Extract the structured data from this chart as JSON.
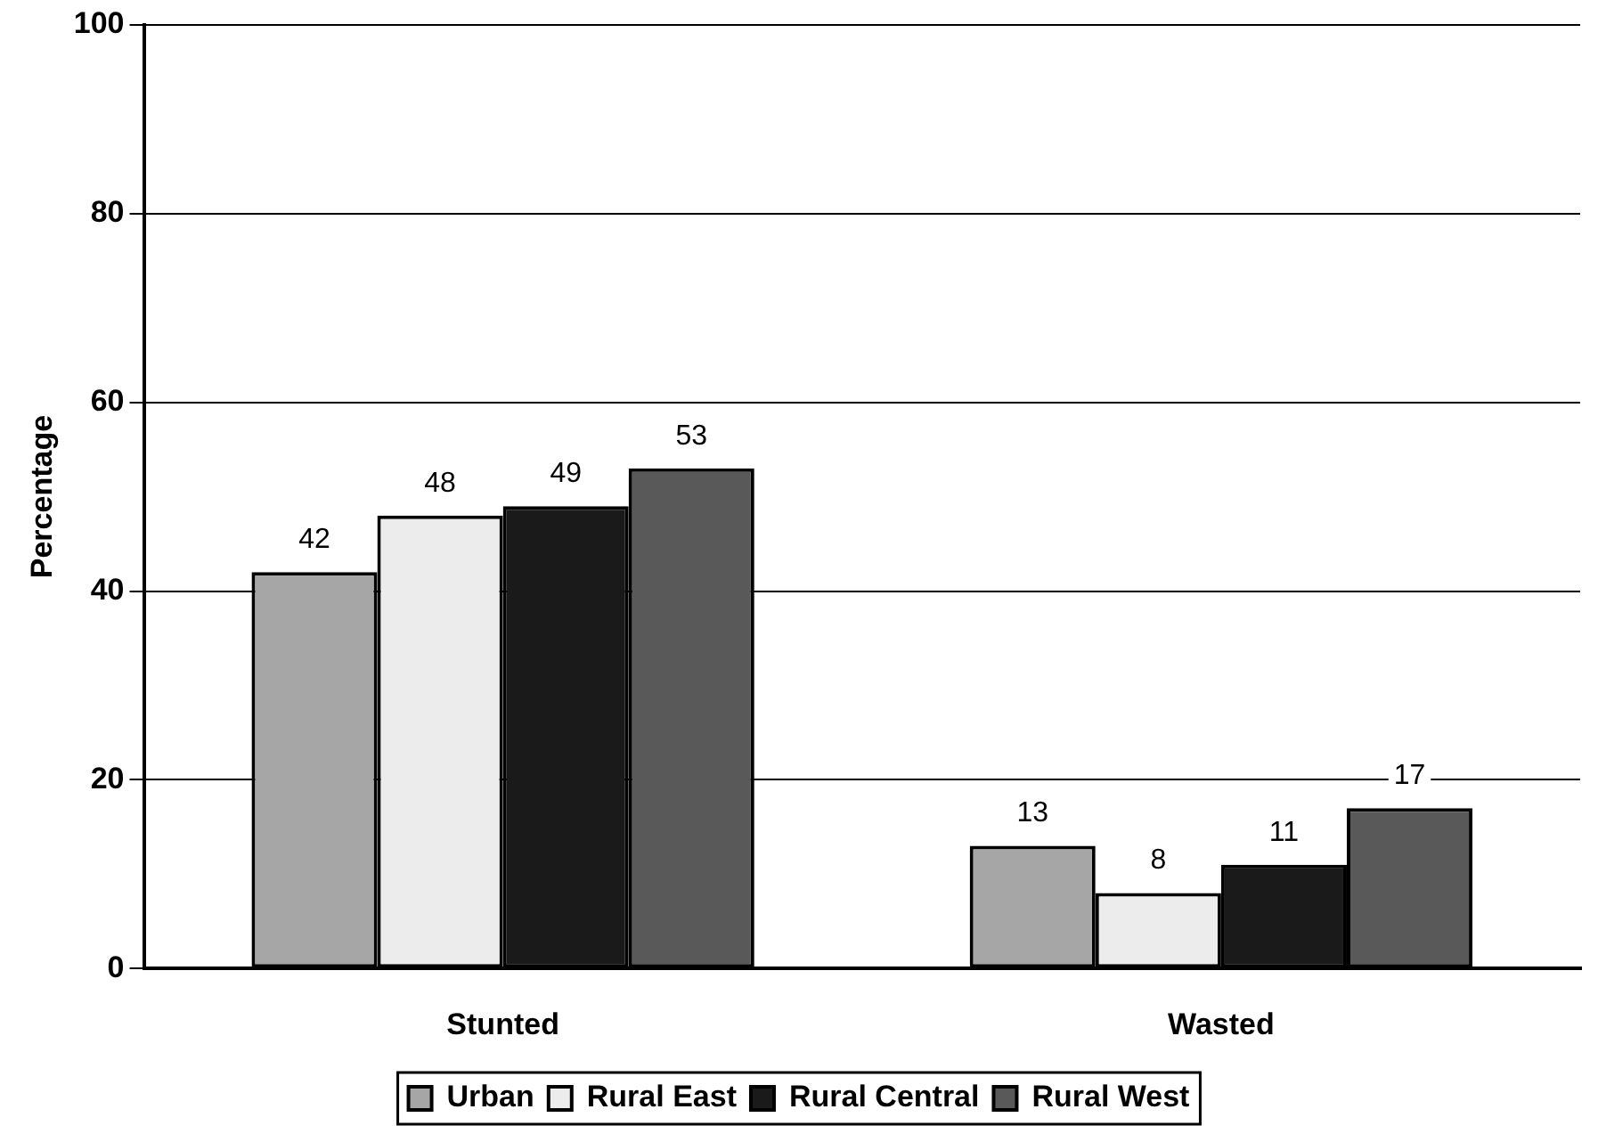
{
  "chart_data": {
    "type": "bar",
    "ylabel": "Percentage",
    "categories": [
      "Stunted",
      "Wasted"
    ],
    "series": [
      {
        "name": "Urban",
        "color": "#a6a6a6",
        "values": [
          42,
          13
        ]
      },
      {
        "name": "Rural East",
        "color": "#ececec",
        "values": [
          48,
          8
        ]
      },
      {
        "name": "Rural Central",
        "color": "#1a1a1a",
        "values": [
          49,
          11
        ]
      },
      {
        "name": "Rural West",
        "color": "#595959",
        "values": [
          53,
          17
        ]
      }
    ],
    "ylim": [
      0,
      100
    ],
    "yticks": [
      0,
      20,
      40,
      60,
      80,
      100
    ],
    "grid": "y",
    "legend": "bottom",
    "data_labels": true
  }
}
